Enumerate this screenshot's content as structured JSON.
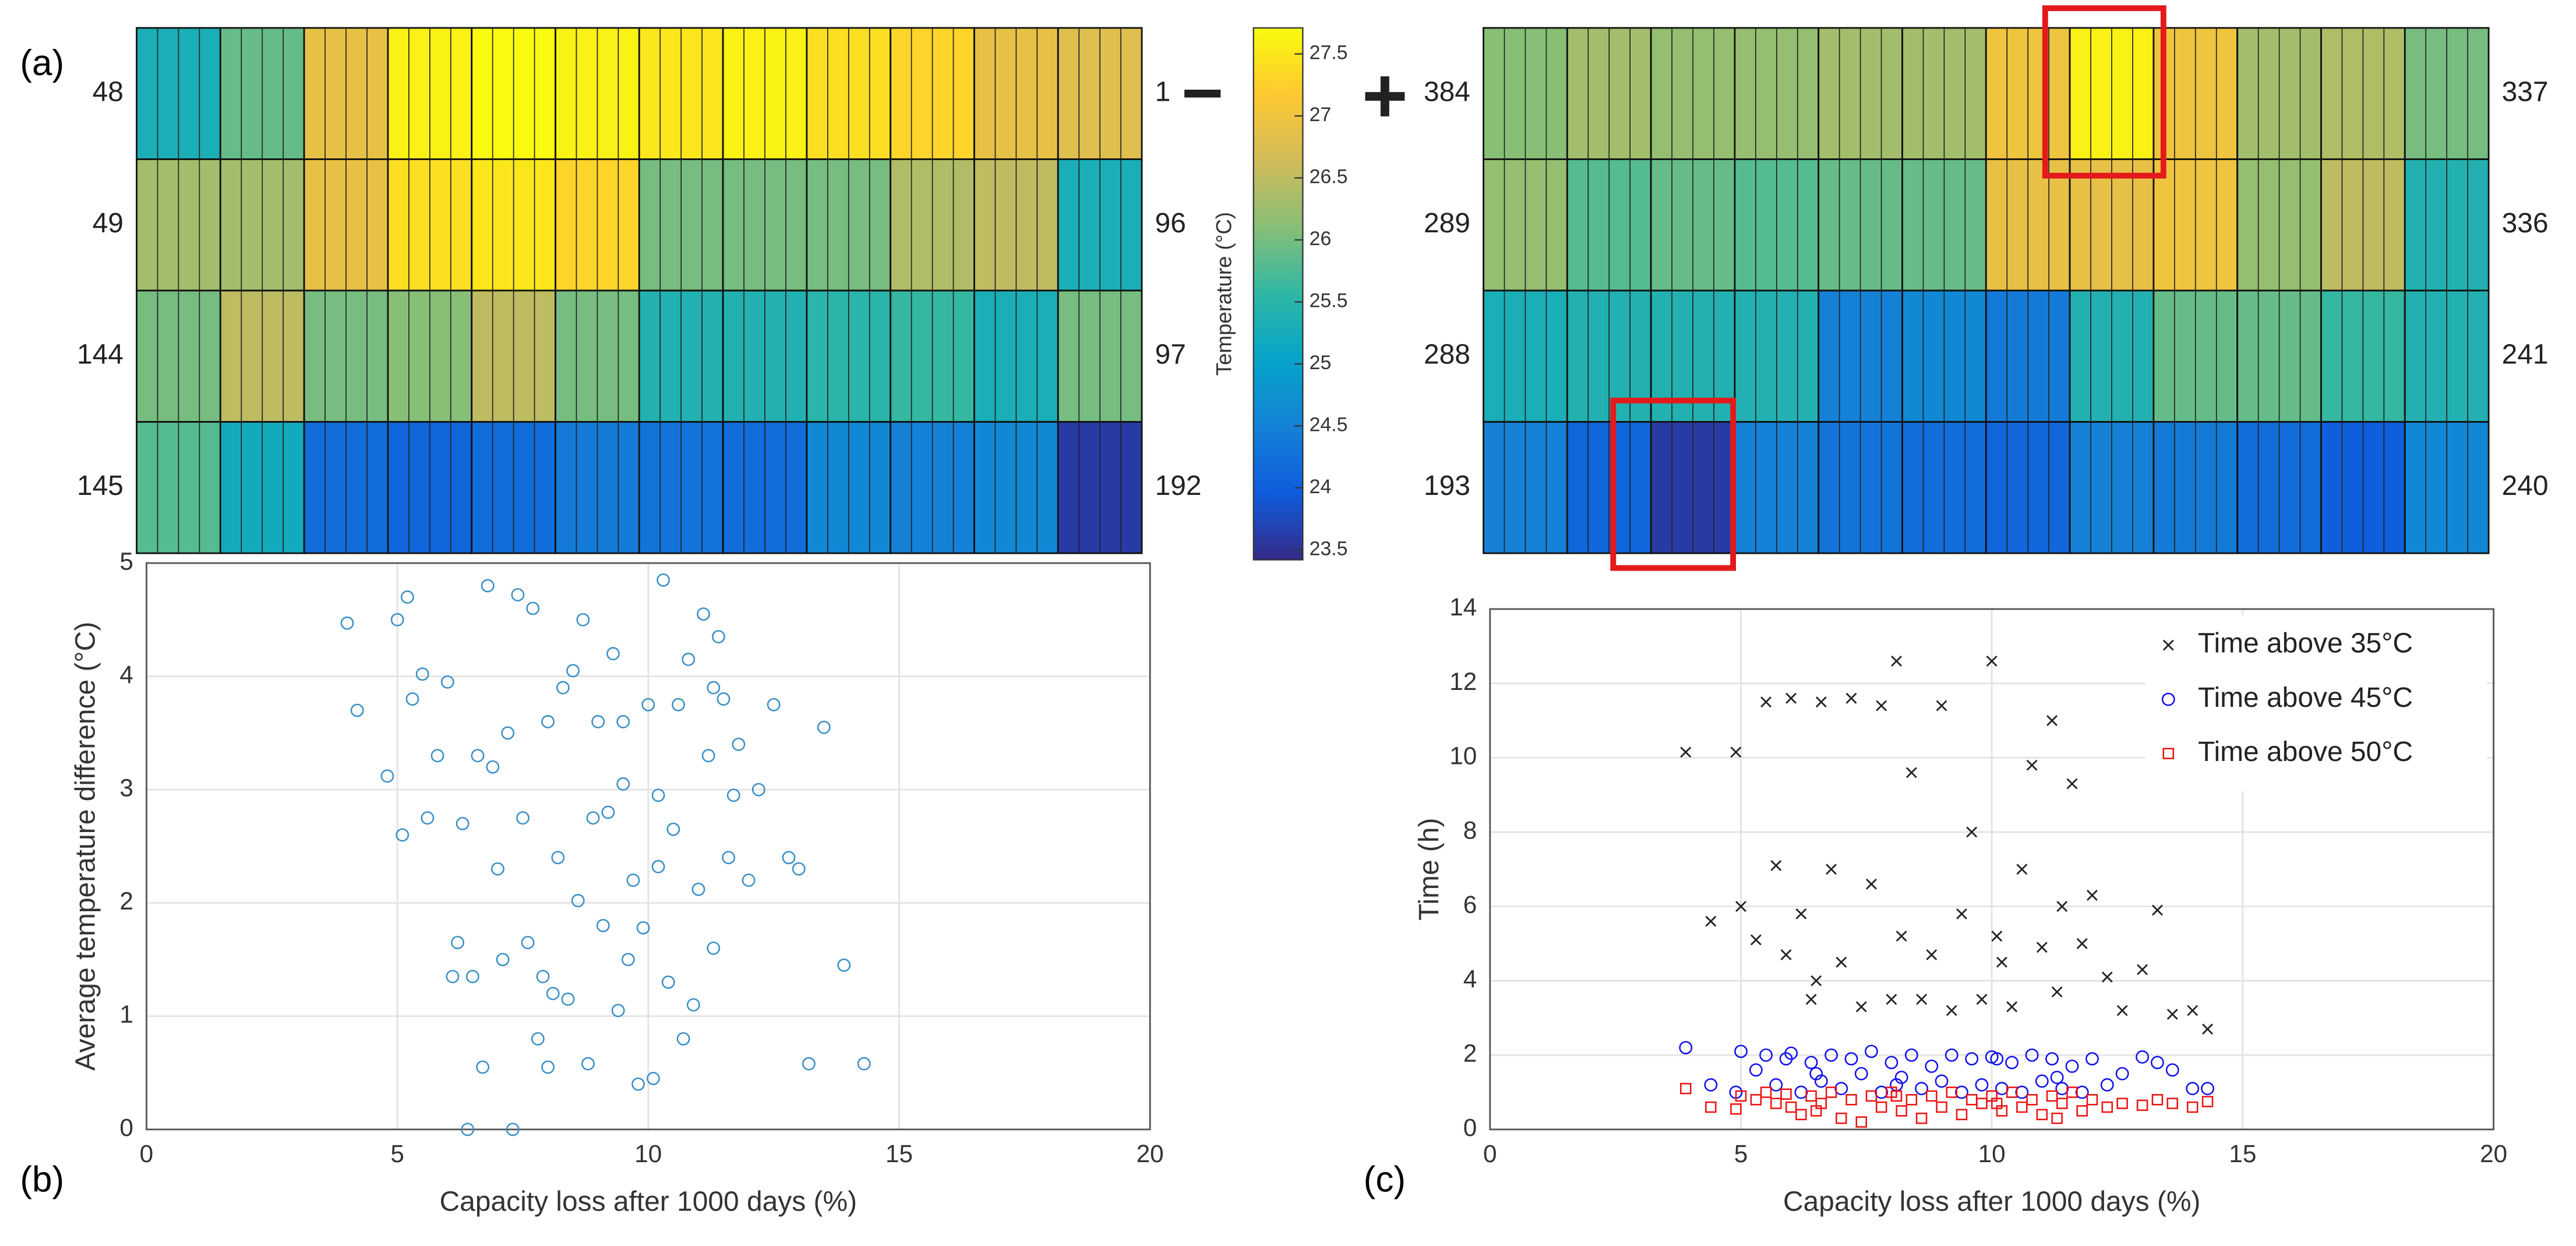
{
  "panel_labels": [
    "(a)",
    "(b)",
    "(c)"
  ],
  "operators": [
    "−",
    "+"
  ],
  "colorbar": {
    "label": "Temperature (°C)",
    "colormap": "parula",
    "lim": [
      23.42,
      27.71
    ],
    "ticks": [
      23.5,
      24,
      24.5,
      25,
      25.5,
      26,
      26.5,
      27,
      27.5
    ]
  },
  "chart_data": [
    {
      "type": "heatmap",
      "row_labels_left": [
        "48",
        "49",
        "144",
        "145"
      ],
      "row_labels_right": [
        "1",
        "96",
        "97",
        "192"
      ],
      "values": [
        [
          25.3,
          25.9,
          26.9,
          27.6,
          27.7,
          27.6,
          27.5,
          27.6,
          27.4,
          27.3,
          26.9,
          26.8
        ],
        [
          26.3,
          26.3,
          26.9,
          27.4,
          27.5,
          27.3,
          26.0,
          26.0,
          26.0,
          26.4,
          26.5,
          25.3
        ],
        [
          26.0,
          26.5,
          26.0,
          26.1,
          26.5,
          26.0,
          25.4,
          25.4,
          25.5,
          25.6,
          25.3,
          26.0
        ],
        [
          25.8,
          25.2,
          24.2,
          24.1,
          24.2,
          24.4,
          24.3,
          24.2,
          24.6,
          24.5,
          24.6,
          23.6
        ]
      ]
    },
    {
      "type": "heatmap",
      "row_labels_left": [
        "384",
        "289",
        "288",
        "193"
      ],
      "row_labels_right": [
        "337",
        "336",
        "241",
        "240"
      ],
      "values": [
        [
          26.1,
          26.3,
          26.2,
          26.2,
          26.3,
          26.3,
          27.0,
          27.6,
          27.0,
          26.3,
          26.4,
          26.0
        ],
        [
          26.2,
          25.8,
          25.9,
          25.8,
          25.9,
          25.9,
          26.9,
          26.9,
          27.0,
          26.2,
          26.5,
          25.4
        ],
        [
          25.3,
          25.4,
          25.4,
          25.4,
          24.5,
          24.6,
          24.4,
          25.4,
          25.9,
          25.9,
          25.6,
          25.4
        ],
        [
          24.5,
          24.1,
          23.6,
          24.5,
          24.3,
          24.2,
          24.1,
          24.5,
          24.4,
          24.2,
          24.0,
          24.6
        ]
      ]
    },
    {
      "type": "scatter",
      "xlabel": "Capacity loss after 1000 days (%)",
      "ylabel": "Average temperature difference (°C)",
      "xlim": [
        0,
        20
      ],
      "ylim": [
        0,
        5
      ],
      "xticks": [
        0,
        5,
        10,
        15,
        20
      ],
      "yticks": [
        0,
        1,
        2,
        3,
        4,
        5
      ],
      "grid": true,
      "series": [
        {
          "marker": "circle",
          "color": "#3a8fc7",
          "x": [
            4,
            4.2,
            4.8,
            5,
            5.1,
            5.2,
            5.5,
            5.6,
            5.8,
            6,
            6.2,
            6.3,
            6.5,
            6.6,
            6.7,
            6.8,
            7,
            7.1,
            7.2,
            7.3,
            7.5,
            7.6,
            7.7,
            7.8,
            8,
            8.1,
            8.2,
            8.3,
            8.4,
            8.5,
            8.6,
            8.7,
            8.8,
            9,
            9.1,
            9.2,
            9.3,
            9.4,
            9.5,
            9.6,
            9.7,
            9.8,
            10,
            10.1,
            10.2,
            10.3,
            10.4,
            10.5,
            10.6,
            10.7,
            10.8,
            11,
            11.1,
            11.2,
            11.3,
            11.4,
            11.5,
            11.6,
            11.8,
            12,
            12.2,
            12.5,
            12.8,
            13,
            13.2,
            13.5,
            13.9,
            14.3,
            5.3,
            6.1,
            6.9,
            7.4,
            8.9,
            9.9,
            10.9,
            11.7,
            6.4,
            8.0,
            9.5,
            10.2,
            7.9,
            11.3
          ],
          "values": [
            4.47,
            3.7,
            3.12,
            4.5,
            2.6,
            4.7,
            4.02,
            2.75,
            3.3,
            3.95,
            1.65,
            2.7,
            1.35,
            3.3,
            0.55,
            4.8,
            2.3,
            1.5,
            3.5,
            0,
            2.75,
            1.65,
            4.6,
            0.8,
            3.6,
            1.2,
            2.4,
            3.9,
            1.15,
            4.05,
            2.02,
            4.5,
            0.58,
            3.6,
            1.8,
            2.8,
            4.2,
            1.05,
            3.6,
            1.5,
            2.2,
            0.4,
            3.75,
            0.45,
            2.32,
            4.85,
            1.3,
            2.65,
            3.75,
            0.8,
            4.15,
            2.12,
            4.55,
            3.3,
            1.6,
            4.35,
            3.8,
            2.4,
            3.4,
            2.2,
            3.0,
            3.75,
            2.4,
            2.3,
            0.58,
            3.55,
            1.45,
            0.58,
            3.8,
            1.35,
            3.2,
            4.72,
            2.75,
            1.78,
            1.1,
            2.95,
            0,
            0.55,
            3.05,
            2.95,
            1.35,
            3.9
          ]
        }
      ]
    },
    {
      "type": "scatter",
      "xlabel": "Capacity loss after 1000 days (%)",
      "ylabel": "Time (h)",
      "xlim": [
        0,
        20
      ],
      "ylim": [
        0,
        14
      ],
      "xticks": [
        0,
        5,
        10,
        15,
        20
      ],
      "yticks": [
        0,
        2,
        4,
        6,
        8,
        10,
        12,
        14
      ],
      "grid": true,
      "legend": "upper right",
      "x": [
        3.9,
        4.4,
        4.9,
        5.0,
        5.3,
        5.5,
        5.7,
        5.9,
        6.0,
        6.2,
        6.4,
        6.6,
        6.8,
        7.0,
        7.2,
        7.4,
        7.6,
        7.8,
        8.0,
        8.2,
        8.4,
        8.6,
        8.8,
        9.0,
        9.2,
        9.4,
        9.6,
        9.8,
        10.0,
        10.2,
        10.4,
        10.6,
        10.8,
        11.0,
        11.2,
        11.4,
        11.6,
        11.8,
        12.0,
        12.3,
        12.6,
        13.0,
        13.3,
        13.6,
        14.0,
        14.3,
        6.5,
        8.1,
        10.1,
        11.3
      ],
      "series": [
        {
          "name": "Time above 35°C",
          "marker": "x",
          "color": "#222222",
          "values": [
            10.15,
            5.6,
            10.15,
            6.0,
            5.1,
            11.5,
            7.1,
            4.7,
            11.6,
            5.8,
            3.5,
            11.5,
            7.0,
            4.5,
            11.6,
            3.3,
            6.6,
            11.4,
            3.5,
            5.2,
            9.6,
            3.5,
            4.7,
            11.4,
            3.2,
            5.8,
            8.0,
            3.5,
            12.6,
            4.5,
            3.3,
            7.0,
            9.8,
            4.9,
            11.0,
            6.0,
            9.3,
            5.0,
            6.3,
            4.1,
            3.2,
            4.3,
            5.9,
            3.1,
            3.2,
            2.7,
            4.0,
            12.6,
            5.2,
            3.7
          ]
        },
        {
          "name": "Time above 45°C",
          "marker": "circle",
          "color": "#1010ee",
          "values": [
            2.2,
            1.2,
            1.0,
            2.1,
            1.6,
            2.0,
            1.2,
            1.9,
            2.05,
            1.0,
            1.8,
            1.3,
            2.0,
            1.1,
            1.9,
            1.5,
            2.1,
            1.0,
            1.8,
            1.4,
            2.0,
            1.1,
            1.7,
            1.3,
            2.0,
            1.0,
            1.9,
            1.2,
            1.95,
            1.1,
            1.8,
            1.0,
            2.0,
            1.3,
            1.9,
            1.1,
            1.7,
            1.0,
            1.9,
            1.2,
            1.5,
            1.95,
            1.8,
            1.6,
            1.1,
            1.1,
            1.5,
            1.2,
            1.9,
            1.4
          ]
        },
        {
          "name": "Time above 50°C",
          "marker": "square",
          "color": "#ee1111",
          "values": [
            1.1,
            0.6,
            0.55,
            0.9,
            0.8,
            1.0,
            0.7,
            0.95,
            0.6,
            0.4,
            0.9,
            0.7,
            1.0,
            0.3,
            0.8,
            0.2,
            0.9,
            0.6,
            1.0,
            0.5,
            0.8,
            0.3,
            0.9,
            0.6,
            1.0,
            0.4,
            0.8,
            0.7,
            0.9,
            0.5,
            1.0,
            0.6,
            0.8,
            0.4,
            0.9,
            0.7,
            1.0,
            0.5,
            0.8,
            0.6,
            0.7,
            0.65,
            0.8,
            0.7,
            0.6,
            0.75,
            0.5,
            0.9,
            0.7,
            0.3
          ]
        }
      ]
    }
  ]
}
